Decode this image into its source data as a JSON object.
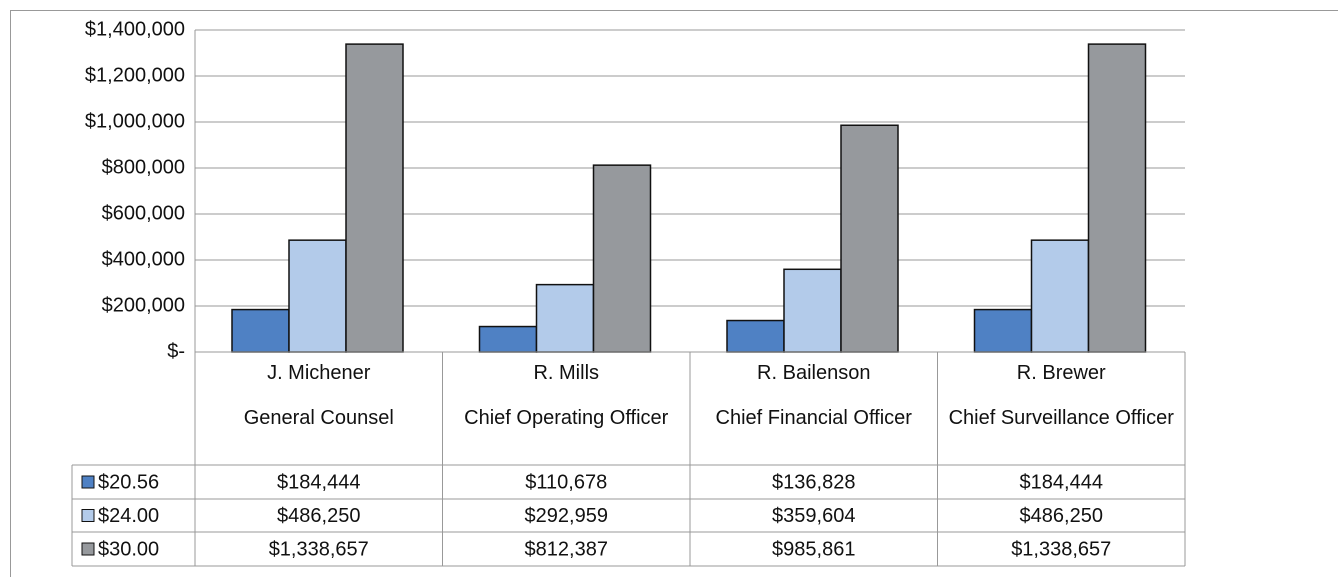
{
  "chart_data": {
    "type": "bar",
    "categories": [
      "J. Michener",
      "R. Mills",
      "R. Bailenson",
      "R. Brewer"
    ],
    "category_titles": [
      "General Counsel",
      "Chief Operating Officer",
      "Chief Financial Officer",
      "Chief Surveillance Officer"
    ],
    "series": [
      {
        "name": "$20.56",
        "color": "#4f81c4",
        "values": [
          184444,
          110678,
          136828,
          184444
        ],
        "value_labels": [
          "$184,444",
          "$110,678",
          "$136,828",
          "$184,444"
        ]
      },
      {
        "name": "$24.00",
        "color": "#b3cbea",
        "values": [
          486250,
          292959,
          359604,
          486250
        ],
        "value_labels": [
          "$486,250",
          "$292,959",
          "$359,604",
          "$486,250"
        ]
      },
      {
        "name": "$30.00",
        "color": "#96999d",
        "values": [
          1338657,
          812387,
          985861,
          1338657
        ],
        "value_labels": [
          "$1,338,657",
          "$812,387",
          "$985,861",
          "$1,338,657"
        ]
      }
    ],
    "ylim": [
      0,
      1400000
    ],
    "yticks": [
      {
        "value": 0,
        "label": "$-"
      },
      {
        "value": 200000,
        "label": "$200,000"
      },
      {
        "value": 400000,
        "label": "$400,000"
      },
      {
        "value": 600000,
        "label": "$600,000"
      },
      {
        "value": 800000,
        "label": "$800,000"
      },
      {
        "value": 1000000,
        "label": "$1,000,000"
      },
      {
        "value": 1200000,
        "label": "$1,200,000"
      },
      {
        "value": 1400000,
        "label": "$1,400,000"
      }
    ],
    "grid": true,
    "data_table": true
  }
}
